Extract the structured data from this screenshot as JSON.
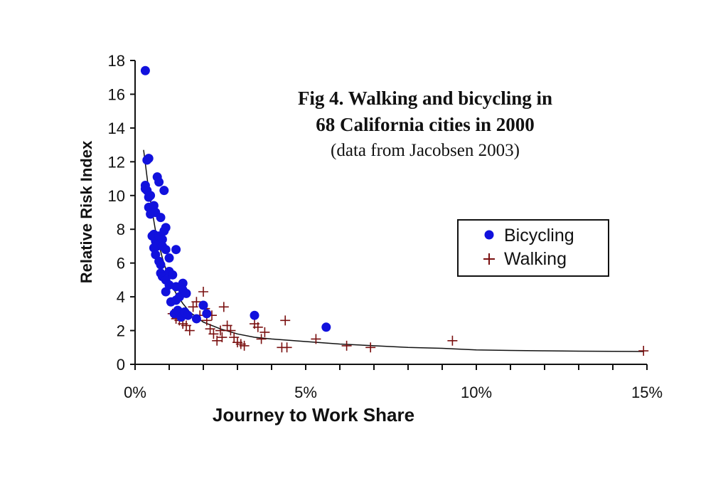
{
  "chart_data": {
    "type": "scatter",
    "title_lines": [
      "Fig 4.  Walking and bicycling in",
      "68 California cities in 2000"
    ],
    "subtitle": "(data from Jacobsen 2003)",
    "xlabel": "Journey to Work Share",
    "ylabel": "Relative Risk Index",
    "xlim": [
      0,
      15
    ],
    "ylim": [
      0,
      18
    ],
    "x_ticks": [
      0,
      5,
      10,
      15
    ],
    "x_tick_labels": [
      "0%",
      "5%",
      "10%",
      "15%"
    ],
    "y_ticks": [
      0,
      2,
      4,
      6,
      8,
      10,
      12,
      14,
      16,
      18
    ],
    "y_tick_labels": [
      "0",
      "2",
      "4",
      "6",
      "8",
      "10",
      "12",
      "14",
      "16",
      "18"
    ],
    "legend_position": "right",
    "series": [
      {
        "name": "Bicycling",
        "marker": "circle",
        "color": "#1111dd",
        "points": [
          [
            0.3,
            17.4
          ],
          [
            0.3,
            10.6
          ],
          [
            0.35,
            12.1
          ],
          [
            0.4,
            12.2
          ],
          [
            0.3,
            10.4
          ],
          [
            0.35,
            10.3
          ],
          [
            0.4,
            9.9
          ],
          [
            0.45,
            10.0
          ],
          [
            0.4,
            9.3
          ],
          [
            0.45,
            8.9
          ],
          [
            0.55,
            9.4
          ],
          [
            0.6,
            9.0
          ],
          [
            0.65,
            11.1
          ],
          [
            0.7,
            10.8
          ],
          [
            0.85,
            10.3
          ],
          [
            0.75,
            8.7
          ],
          [
            0.5,
            7.6
          ],
          [
            0.55,
            7.7
          ],
          [
            0.6,
            7.3
          ],
          [
            0.65,
            7.0
          ],
          [
            0.7,
            7.6
          ],
          [
            0.8,
            7.4
          ],
          [
            0.9,
            8.1
          ],
          [
            0.85,
            7.9
          ],
          [
            0.55,
            6.9
          ],
          [
            0.6,
            6.5
          ],
          [
            0.7,
            6.1
          ],
          [
            0.75,
            5.9
          ],
          [
            0.8,
            7.0
          ],
          [
            0.9,
            6.8
          ],
          [
            1.0,
            6.3
          ],
          [
            1.2,
            6.8
          ],
          [
            0.75,
            5.4
          ],
          [
            0.8,
            5.2
          ],
          [
            0.9,
            5.0
          ],
          [
            1.0,
            5.5
          ],
          [
            1.1,
            5.3
          ],
          [
            0.9,
            4.3
          ],
          [
            1.0,
            4.7
          ],
          [
            1.2,
            4.6
          ],
          [
            1.05,
            3.7
          ],
          [
            1.2,
            3.8
          ],
          [
            1.3,
            4.0
          ],
          [
            1.4,
            4.8
          ],
          [
            1.4,
            4.4
          ],
          [
            1.5,
            4.2
          ],
          [
            1.15,
            3.0
          ],
          [
            1.25,
            3.2
          ],
          [
            1.35,
            2.8
          ],
          [
            1.45,
            3.1
          ],
          [
            1.55,
            2.9
          ],
          [
            1.8,
            2.7
          ],
          [
            2.0,
            3.5
          ],
          [
            2.1,
            3.0
          ],
          [
            3.5,
            2.9
          ],
          [
            5.6,
            2.2
          ]
        ]
      },
      {
        "name": "Walking",
        "marker": "plus",
        "color": "#7a1010",
        "points": [
          [
            1.1,
            3.0
          ],
          [
            1.2,
            2.7
          ],
          [
            1.3,
            2.6
          ],
          [
            1.4,
            2.4
          ],
          [
            1.5,
            2.3
          ],
          [
            1.6,
            2.0
          ],
          [
            1.7,
            3.4
          ],
          [
            1.8,
            3.7
          ],
          [
            1.9,
            2.9
          ],
          [
            2.0,
            4.3
          ],
          [
            2.05,
            3.3
          ],
          [
            2.1,
            2.6
          ],
          [
            2.2,
            2.1
          ],
          [
            2.25,
            2.9
          ],
          [
            2.3,
            1.8
          ],
          [
            2.4,
            1.4
          ],
          [
            2.5,
            2.0
          ],
          [
            2.55,
            1.6
          ],
          [
            2.6,
            3.4
          ],
          [
            2.7,
            2.3
          ],
          [
            2.8,
            2.0
          ],
          [
            2.9,
            1.6
          ],
          [
            3.0,
            1.3
          ],
          [
            3.1,
            1.2
          ],
          [
            3.2,
            1.1
          ],
          [
            3.5,
            2.4
          ],
          [
            3.6,
            2.2
          ],
          [
            3.7,
            1.5
          ],
          [
            3.8,
            1.9
          ],
          [
            4.3,
            1.0
          ],
          [
            4.4,
            2.6
          ],
          [
            4.45,
            1.0
          ],
          [
            5.3,
            1.5
          ],
          [
            6.2,
            1.1
          ],
          [
            6.9,
            1.0
          ],
          [
            9.3,
            1.4
          ],
          [
            14.9,
            0.8
          ]
        ]
      }
    ],
    "fit_curve": {
      "name": "trend",
      "points": [
        [
          0.25,
          12.7
        ],
        [
          0.4,
          10.3
        ],
        [
          0.6,
          7.9
        ],
        [
          0.8,
          6.3
        ],
        [
          1.0,
          5.0
        ],
        [
          1.2,
          4.2
        ],
        [
          1.4,
          3.6
        ],
        [
          1.6,
          3.1
        ],
        [
          1.8,
          2.8
        ],
        [
          2.0,
          2.5
        ],
        [
          2.5,
          2.1
        ],
        [
          3.0,
          1.8
        ],
        [
          3.5,
          1.6
        ],
        [
          4.0,
          1.5
        ],
        [
          5.0,
          1.35
        ],
        [
          6.0,
          1.2
        ],
        [
          7.0,
          1.1
        ],
        [
          8.0,
          1.0
        ],
        [
          9.0,
          0.95
        ],
        [
          10.0,
          0.85
        ],
        [
          11.0,
          0.82
        ],
        [
          12.0,
          0.8
        ],
        [
          13.0,
          0.78
        ],
        [
          14.0,
          0.77
        ],
        [
          14.9,
          0.76
        ]
      ]
    }
  }
}
